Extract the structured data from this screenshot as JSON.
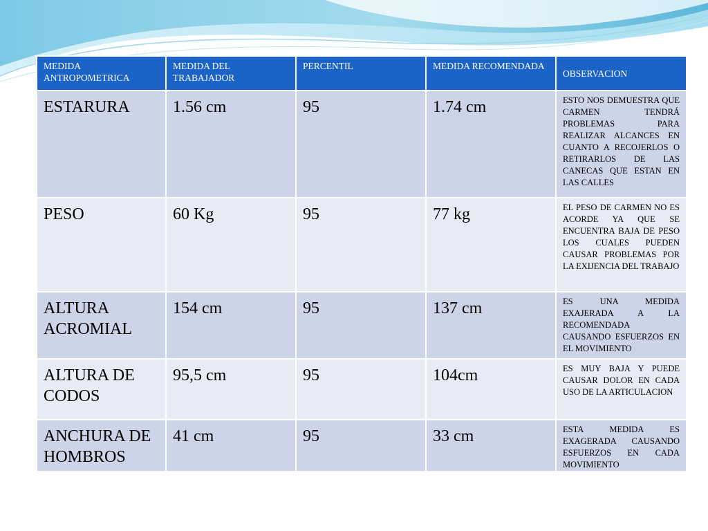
{
  "table": {
    "headers": [
      "MEDIDA ANTROPOMETRICA",
      "MEDIDA DEL TRABAJADOR",
      "PERCENTIL",
      "MEDIDA RECOMENDADA",
      "OBSERVACION"
    ],
    "rows": [
      {
        "medida": "ESTARURA",
        "trabajador": "1.56 cm",
        "percentil": "95",
        "recomendada": "1.74 cm",
        "observacion": "ESTO NOS DEMUESTRA QUE CARMEN TENDRÁ PROBLEMAS PARA REALIZAR ALCANCES EN CUANTO A RECOJERLOS O RETIRARLOS DE LAS CANECAS QUE ESTAN EN LAS CALLES"
      },
      {
        "medida": "PESO",
        "trabajador": "60 Kg",
        "percentil": "95",
        "recomendada": "77 kg",
        "observacion": "EL PESO DE CARMEN NO ES ACORDE YA QUE SE ENCUENTRA BAJA DE PESO LOS CUALES PUEDEN CAUSAR PROBLEMAS POR LA EXIJENCIA DEL TRABAJO"
      },
      {
        "medida": "ALTURA ACROMIAL",
        "trabajador": "154 cm",
        "percentil": "95",
        "recomendada": "137 cm",
        "observacion": "ES UNA MEDIDA EXAJERADA A LA RECOMENDADA CAUSANDO ESFUERZOS EN EL MOVIMIENTO"
      },
      {
        "medida": "ALTURA DE CODOS",
        "trabajador": "95,5 cm",
        "percentil": "95",
        "recomendada": "104cm",
        "observacion": "ES MUY BAJA Y PUEDE CAUSAR DOLOR EN CADA USO DE LA ARTICULACION"
      },
      {
        "medida": "ANCHURA DE HOMBROS",
        "trabajador": "41 cm",
        "percentil": "95",
        "recomendada": "33 cm",
        "observacion": "ESTA MEDIDA ES EXAGERADA CAUSANDO ESFUERZOS EN CADA MOVIMIENTO"
      }
    ]
  },
  "colors": {
    "header_bg": "#1b63c6",
    "row_odd_bg": "#ccd4e8",
    "row_even_bg": "#e7ebf5",
    "wave_dark": "#5fb6d8",
    "wave_light": "#bfe6f2"
  }
}
